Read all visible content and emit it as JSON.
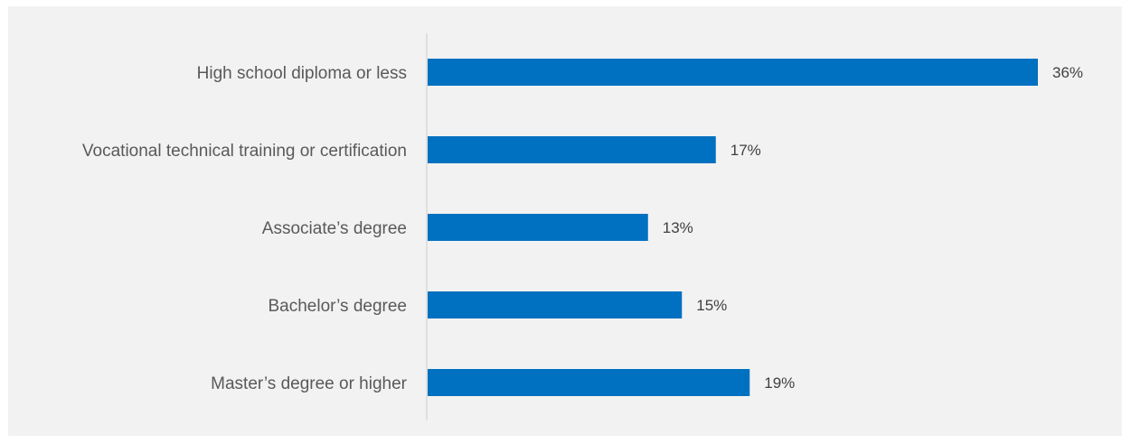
{
  "chart_data": {
    "type": "bar",
    "orientation": "horizontal",
    "categories": [
      "High school diploma or less",
      "Vocational technical training or certification",
      "Associate’s degree",
      "Bachelor’s degree",
      "Master’s degree or higher"
    ],
    "values": [
      36,
      17,
      13,
      15,
      19
    ],
    "value_labels": [
      "36%",
      "17%",
      "13%",
      "15%",
      "19%"
    ],
    "unit": "%",
    "xlim": [
      0,
      36
    ],
    "grid": false,
    "bar_color": "#0070c0",
    "background_color": "#f2f2f2",
    "axis_line_color": "#d9d9d9"
  }
}
